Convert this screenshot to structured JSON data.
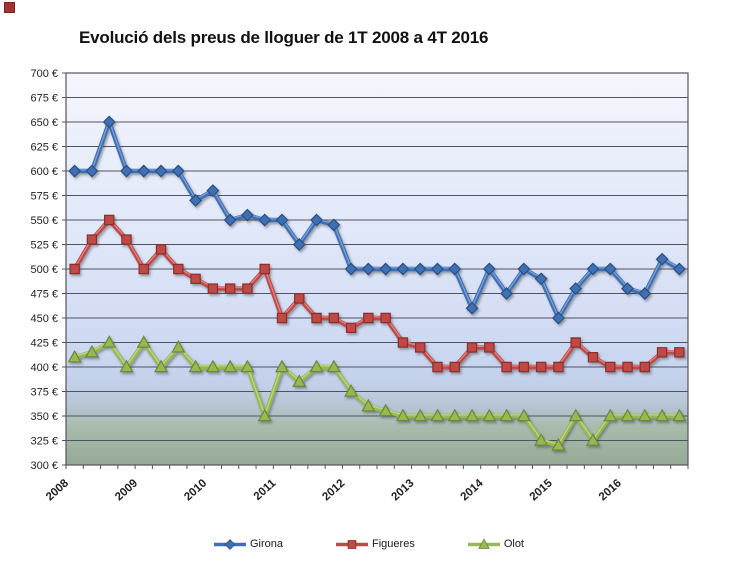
{
  "chart_data": {
    "type": "line",
    "title": "Evolució dels preus de lloguer de 1T 2008 a 4T 2016",
    "x_tick_labels": [
      "2008",
      "2009",
      "2010",
      "2011",
      "2012",
      "2013",
      "2014",
      "2015",
      "2016"
    ],
    "x_major_tick_every": 4,
    "points_per_series": 36,
    "ylim": [
      300,
      700
    ],
    "y_tick_step": 25,
    "y_tick_labels": [
      "700 €",
      "675 €",
      "650 €",
      "625 €",
      "600 €",
      "575 €",
      "550 €",
      "525 €",
      "500 €",
      "475 €",
      "450 €",
      "425 €",
      "400 €",
      "375 €",
      "350 €",
      "325 €",
      "300 €"
    ],
    "grid": true,
    "legend_position": "bottom",
    "gridline_color": "#53535f",
    "plot_bg_gradient": [
      [
        0.0,
        "#f6f7fd"
      ],
      [
        0.18,
        "#ebeffb"
      ],
      [
        0.4,
        "#e1e8f9"
      ],
      [
        0.6,
        "#d5def5"
      ],
      [
        0.72,
        "#cbd7f0"
      ],
      [
        0.8,
        "#c2cfe8"
      ],
      [
        0.855,
        "#b4c4cf"
      ],
      [
        0.9,
        "#a9bcae"
      ],
      [
        0.95,
        "#9fb3a1"
      ],
      [
        1.0,
        "#95a996"
      ]
    ],
    "series": [
      {
        "name": "Girona",
        "marker": "diamond",
        "color": "#3f6fb4",
        "edge": "#2c4f82",
        "highlight": "#85a8d8",
        "values": [
          600,
          600,
          650,
          600,
          600,
          600,
          600,
          570,
          580,
          550,
          555,
          550,
          550,
          525,
          550,
          545,
          500,
          500,
          500,
          500,
          500,
          500,
          500,
          460,
          500,
          475,
          500,
          490,
          450,
          480,
          500,
          500,
          480,
          475,
          510,
          500
        ]
      },
      {
        "name": "Figueres",
        "marker": "square",
        "color": "#be4a47",
        "edge": "#8c2e2c",
        "highlight": "#de8f8d",
        "values": [
          500,
          530,
          550,
          530,
          500,
          520,
          500,
          490,
          480,
          480,
          480,
          500,
          450,
          470,
          450,
          450,
          440,
          450,
          450,
          425,
          420,
          400,
          400,
          420,
          420,
          400,
          400,
          400,
          400,
          425,
          410,
          400,
          400,
          400,
          415,
          415
        ]
      },
      {
        "name": "Olot",
        "marker": "triangle",
        "color": "#97b94f",
        "edge": "#6b873a",
        "highlight": "#c6da8e",
        "values": [
          410,
          415,
          425,
          400,
          425,
          400,
          420,
          400,
          400,
          400,
          400,
          350,
          400,
          385,
          400,
          400,
          375,
          360,
          355,
          350,
          350,
          350,
          350,
          350,
          350,
          350,
          350,
          325,
          320,
          350,
          325,
          350,
          350,
          350,
          350,
          350
        ]
      }
    ]
  }
}
